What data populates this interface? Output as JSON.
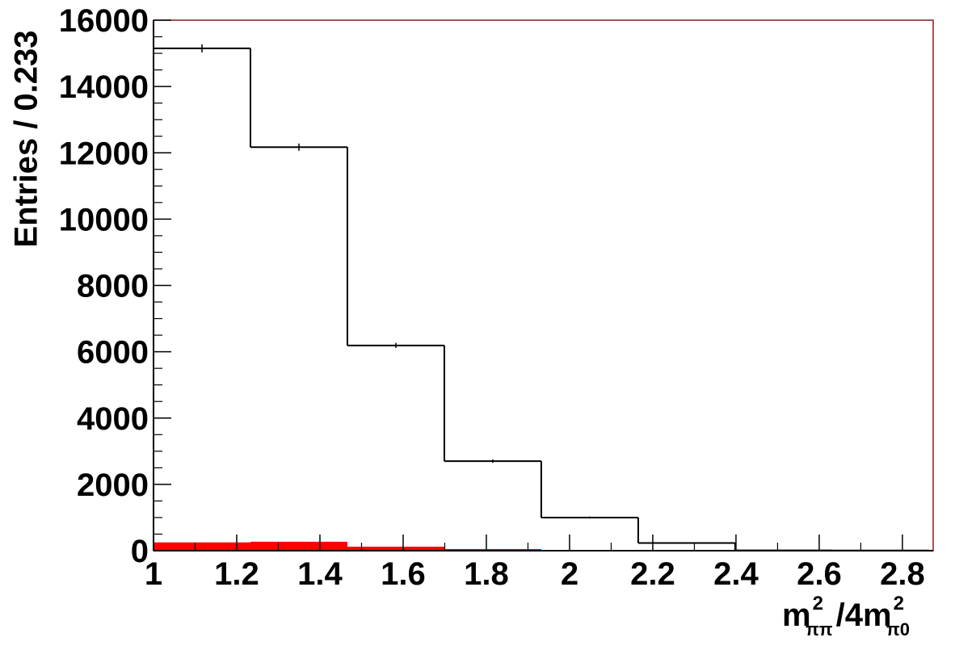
{
  "chart_data": {
    "type": "histogram",
    "ylabel": "Entries / 0.233",
    "xlabel_parts": [
      "m",
      "2",
      "ππ",
      "/4m",
      "2",
      "π0"
    ],
    "bins": [
      1,
      1.233,
      1.466,
      1.699,
      1.932,
      2.165,
      2.398,
      2.631,
      2.864
    ],
    "series": [
      {
        "color": "#000000",
        "values": [
          15150,
          12170,
          6190,
          2700,
          1000,
          230,
          10,
          5
        ],
        "errors": [
          123,
          110,
          79,
          52,
          32,
          15,
          3,
          2
        ]
      },
      {
        "color": "#ff0000",
        "values": [
          250,
          270,
          120,
          50,
          20,
          5,
          0,
          0
        ]
      }
    ],
    "xlim": [
      1,
      2.874
    ],
    "ylim": [
      0,
      16000
    ],
    "xticks": [
      1,
      1.2,
      1.4,
      1.6,
      1.8,
      2,
      2.2,
      2.4,
      2.6,
      2.8
    ],
    "yticks": [
      0,
      2000,
      4000,
      6000,
      8000,
      10000,
      12000,
      14000,
      16000
    ],
    "frame_color": "#8b1a1a"
  }
}
